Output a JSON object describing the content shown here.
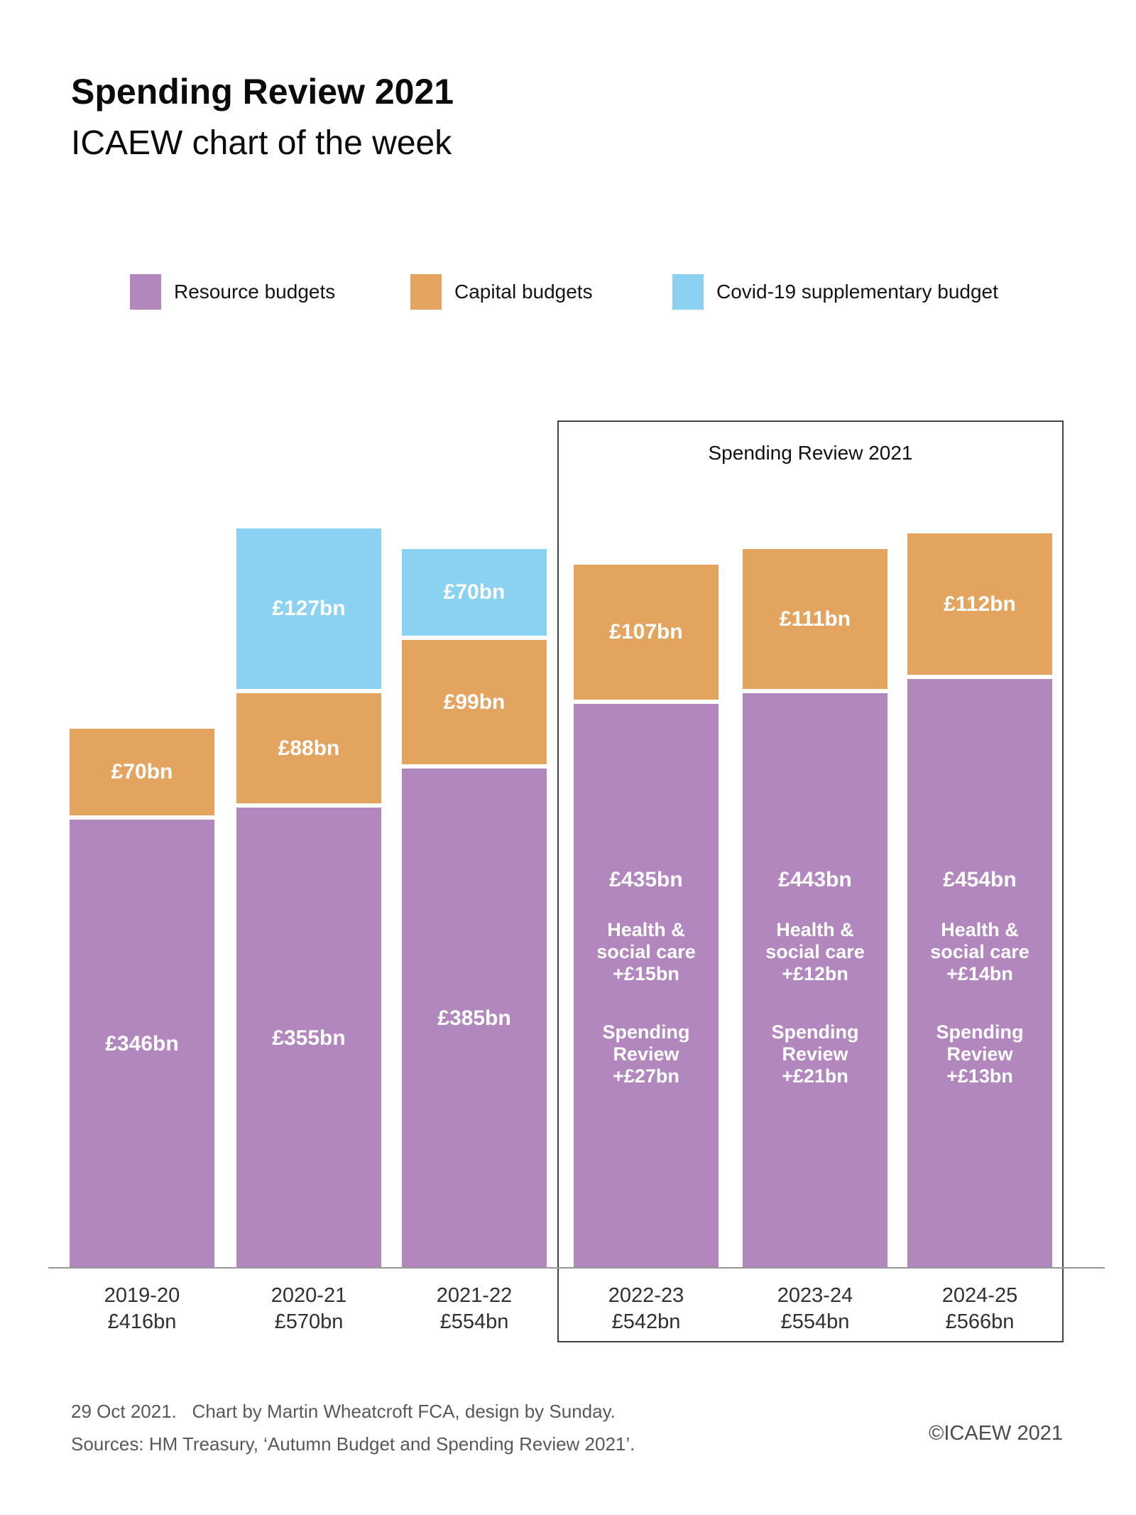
{
  "header": {
    "title": "Spending Review 2021",
    "subtitle": "ICAEW chart of the week"
  },
  "legend": [
    {
      "label": "Resource budgets",
      "color": "#b287be"
    },
    {
      "label": "Capital budgets",
      "color": "#e3a45f"
    },
    {
      "label": "Covid-19 supplementary budget",
      "color": "#8bd1f1"
    }
  ],
  "chart_data": {
    "type": "bar",
    "stacked": true,
    "unit": "£bn",
    "grid": false,
    "categories": [
      "2019-20",
      "2020-21",
      "2021-22",
      "2022-23",
      "2023-24",
      "2024-25"
    ],
    "totals": [
      416,
      570,
      554,
      542,
      554,
      566
    ],
    "total_labels": [
      "£416bn",
      "£570bn",
      "£554bn",
      "£542bn",
      "£554bn",
      "£566bn"
    ],
    "series": [
      {
        "name": "Resource budgets",
        "color": "#b287be",
        "values": [
          346,
          355,
          385,
          435,
          443,
          454
        ],
        "labels": [
          "£346bn",
          "£355bn",
          "£385bn",
          "£435bn",
          "£443bn",
          "£454bn"
        ]
      },
      {
        "name": "Capital budgets",
        "color": "#e3a45f",
        "values": [
          70,
          88,
          99,
          107,
          111,
          112
        ],
        "labels": [
          "£70bn",
          "£88bn",
          "£99bn",
          "£107bn",
          "£111bn",
          "£112bn"
        ]
      },
      {
        "name": "Covid-19 supplementary budget",
        "color": "#8bd1f1",
        "values": [
          0,
          127,
          70,
          0,
          0,
          0
        ],
        "labels": [
          "",
          "£127bn",
          "£70bn",
          "",
          "",
          ""
        ]
      }
    ],
    "annotations": [
      null,
      null,
      null,
      {
        "health_social_care": "Health &\nsocial care\n+£15bn",
        "spending_review": "Spending\nReview\n+£27bn"
      },
      {
        "health_social_care": "Health &\nsocial care\n+£12bn",
        "spending_review": "Spending\nReview\n+£21bn"
      },
      {
        "health_social_care": "Health &\nsocial care\n+£14bn",
        "spending_review": "Spending\nReview\n+£13bn"
      }
    ],
    "sr_box": {
      "label": "Spending Review 2021",
      "covers": [
        "2022-23",
        "2023-24",
        "2024-25"
      ]
    }
  },
  "footer": {
    "line1": "29 Oct 2021.   Chart by Martin Wheatcroft FCA, design by Sunday.",
    "line2": "Sources: HM Treasury, ‘Autumn Budget and Spending Review 2021’.",
    "copyright": "©ICAEW 2021"
  }
}
